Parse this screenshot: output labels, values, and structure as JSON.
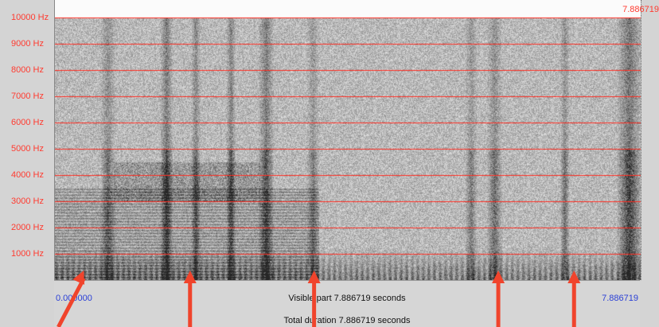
{
  "frequency_axis": {
    "labels": [
      "10000 Hz",
      "9000 Hz",
      "8000 Hz",
      "7000 Hz",
      "6000 Hz",
      "5000 Hz",
      "4000 Hz",
      "3000 Hz",
      "2000 Hz",
      "1000 Hz"
    ],
    "values_hz": [
      10000,
      9000,
      8000,
      7000,
      6000,
      5000,
      4000,
      3000,
      2000,
      1000
    ],
    "max_hz": 10000,
    "line_color": "#ff2d22"
  },
  "time_axis": {
    "start": "0.000000",
    "end": "7.886719",
    "top_right": "7.886719",
    "max_seconds": 7.886719
  },
  "info": {
    "visible_part": "Visible part 7.886719 seconds",
    "total_duration": "Total duration 7.886719 seconds"
  },
  "arrows": {
    "color": "#f0442c",
    "times_seconds": [
      0.4,
      1.83,
      3.5,
      5.98,
      7.0
    ]
  }
}
